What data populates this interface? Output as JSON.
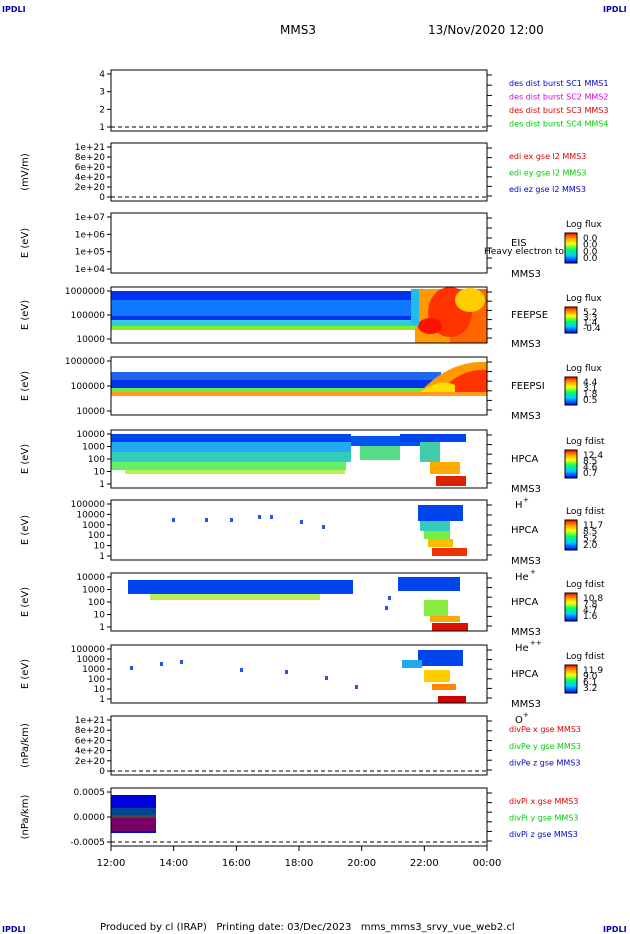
{
  "corner_labels": {
    "tl": "IPDLI",
    "tr": "IPDLI",
    "bl": "IPDLI",
    "br": "IPDLI"
  },
  "header": {
    "mission": "MMS3",
    "datetime": "13/Nov/2020 12:00"
  },
  "footer": {
    "text": "Produced by cl (IRAP)   Printing date: 03/Dec/2023   mms_mms3_srvy_vue_web2.cl"
  },
  "time_axis": {
    "ticks": [
      "12:00",
      "14:00",
      "16:00",
      "18:00",
      "20:00",
      "22:00",
      "00:00"
    ]
  },
  "chart_data": [
    {
      "type": "line",
      "panel": 1,
      "ylabel": "",
      "yticks": [
        "4",
        "3",
        "2",
        "1"
      ],
      "legend": [
        {
          "text": "des dist burst SC1 MMS1",
          "color": "#0000cc"
        },
        {
          "text": "des dist burst SC2 MMS2",
          "color": "#dd00dd"
        },
        {
          "text": "des dist burst SC3 MMS3",
          "color": "#dd0000"
        },
        {
          "text": "des dist burst SC4 MMS4",
          "color": "#00cc00"
        }
      ]
    },
    {
      "type": "line",
      "panel": 2,
      "ylabel": "(mV/m)",
      "yticks": [
        "1e+21",
        "8e+20",
        "6e+20",
        "4e+20",
        "2e+20",
        "0"
      ],
      "legend": [
        {
          "text": "edi ex gse l2 MMS3",
          "color": "#dd0000"
        },
        {
          "text": "edi ey gse l2 MMS3",
          "color": "#00cc00"
        },
        {
          "text": "edi ez gse l2 MMS3",
          "color": "#0000cc"
        }
      ]
    },
    {
      "type": "heatmap",
      "panel": 3,
      "ylabel": "E (eV)",
      "yticks": [
        "1e+07",
        "1e+06",
        "1e+05",
        "1e+04"
      ],
      "instrument": "EIS",
      "sc": "MMS3",
      "extra": "Heavy electron to",
      "colorbar_title": "Log flux",
      "colorbar_ticks": [
        "0.0",
        "0.0",
        "0.0",
        "0.0"
      ]
    },
    {
      "type": "heatmap",
      "panel": 4,
      "ylabel": "E (eV)",
      "yticks": [
        "1000000",
        "100000",
        "10000"
      ],
      "instrument": "FEEPSE",
      "sc": "MMS3",
      "colorbar_title": "Log flux",
      "colorbar_ticks": [
        "5.2",
        "3.3",
        "1.4",
        "-0.4"
      ]
    },
    {
      "type": "heatmap",
      "panel": 5,
      "ylabel": "E (eV)",
      "yticks": [
        "1000000",
        "100000",
        "10000"
      ],
      "instrument": "FEEPSI",
      "sc": "MMS3",
      "colorbar_title": "Log flux",
      "colorbar_ticks": [
        "4.4",
        "3.1",
        "1.8",
        "0.5"
      ]
    },
    {
      "type": "heatmap",
      "panel": 6,
      "ylabel": "E (eV)",
      "yticks": [
        "10000",
        "1000",
        "100",
        "10",
        "1"
      ],
      "instrument": "HPCA",
      "sc": "MMS3",
      "species": "H",
      "charge": "+",
      "colorbar_title": "Log fdist",
      "colorbar_ticks": [
        "12.4",
        "8.5",
        "4.6",
        "0.7"
      ]
    },
    {
      "type": "heatmap",
      "panel": 7,
      "ylabel": "E (eV)",
      "yticks": [
        "100000",
        "10000",
        "1000",
        "100",
        "10",
        "1"
      ],
      "instrument": "HPCA",
      "sc": "MMS3",
      "species": "He",
      "charge": "+",
      "colorbar_title": "Log fdist",
      "colorbar_ticks": [
        "11.7",
        "8.5",
        "5.2",
        "2.0"
      ]
    },
    {
      "type": "heatmap",
      "panel": 8,
      "ylabel": "E (eV)",
      "yticks": [
        "10000",
        "1000",
        "100",
        "10",
        "1"
      ],
      "instrument": "HPCA",
      "sc": "MMS3",
      "species": "He",
      "charge": "++",
      "colorbar_title": "Log fdist",
      "colorbar_ticks": [
        "10.8",
        "7.8",
        "4.7",
        "1.6"
      ]
    },
    {
      "type": "heatmap",
      "panel": 9,
      "ylabel": "E (eV)",
      "yticks": [
        "100000",
        "10000",
        "1000",
        "100",
        "10",
        "1"
      ],
      "instrument": "HPCA",
      "sc": "MMS3",
      "species": "O",
      "charge": "+",
      "colorbar_title": "Log fdist",
      "colorbar_ticks": [
        "11.9",
        "9.0",
        "6.1",
        "3.2"
      ]
    },
    {
      "type": "line",
      "panel": 10,
      "ylabel": "(nPa/km)",
      "yticks": [
        "1e+21",
        "8e+20",
        "6e+20",
        "4e+20",
        "2e+20",
        "0"
      ],
      "legend": [
        {
          "text": "divPe x gse MMS3",
          "color": "#dd0000"
        },
        {
          "text": "divPe y gse MMS3",
          "color": "#00cc00"
        },
        {
          "text": "divPe z gse MMS3",
          "color": "#0000cc"
        }
      ]
    },
    {
      "type": "line",
      "panel": 11,
      "ylabel": "(nPa/km)",
      "yticks": [
        "0.0005",
        "0.0000",
        "-0.0005"
      ],
      "legend": [
        {
          "text": "divPi x gse MMS3",
          "color": "#dd0000"
        },
        {
          "text": "divPi y gse MMS3",
          "color": "#00cc00"
        },
        {
          "text": "divPi z gse MMS3",
          "color": "#0000cc"
        }
      ]
    }
  ]
}
